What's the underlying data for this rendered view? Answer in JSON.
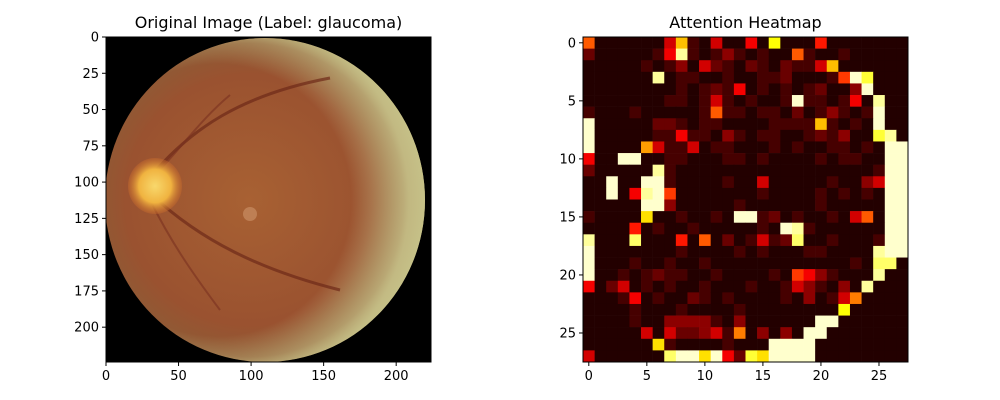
{
  "chart_data": [
    {
      "type": "image",
      "title": "Original Image (Label: glaucoma)",
      "xlim": [
        0,
        224
      ],
      "ylim": [
        224,
        0
      ],
      "xticks": [
        0,
        50,
        100,
        150,
        200
      ],
      "yticks": [
        0,
        25,
        50,
        75,
        100,
        125,
        150,
        175,
        200
      ],
      "image_content": "color retinal fundus photograph",
      "optic_disc_center": [
        37,
        103
      ],
      "optic_disc_radius": 16,
      "colors": {
        "background": "#000000",
        "retina_dark": "#7d3a22",
        "retina_mid": "#a86133",
        "rim": "#c9c58c",
        "optic_disc": "#f6c24c"
      }
    },
    {
      "type": "heatmap",
      "title": "Attention Heatmap",
      "colormap": "hot",
      "shape": [
        28,
        28
      ],
      "xlim": [
        -0.5,
        27.5
      ],
      "ylim": [
        27.5,
        -0.5
      ],
      "xticks": [
        0,
        5,
        10,
        15,
        20,
        25
      ],
      "yticks": [
        0,
        5,
        10,
        15,
        20,
        25
      ],
      "values": [
        [
          0.5,
          0.05,
          0.05,
          0.05,
          0.05,
          0.05,
          0.05,
          0.3,
          0.65,
          0.1,
          0.05,
          0.3,
          0.05,
          0.05,
          0.35,
          0.05,
          0.75,
          0.05,
          0.05,
          0.05,
          0.4,
          0.05,
          0.05,
          0.05,
          0.05,
          0.05,
          0.05,
          0.05
        ],
        [
          0.15,
          0.05,
          0.05,
          0.05,
          0.05,
          0.05,
          0.1,
          0.35,
          0.9,
          0.1,
          0.05,
          0.1,
          0.2,
          0.1,
          0.05,
          0.1,
          0.05,
          0.05,
          0.5,
          0.1,
          0.05,
          0.05,
          0.1,
          0.05,
          0.05,
          0.05,
          0.05,
          0.05
        ],
        [
          0.05,
          0.05,
          0.05,
          0.05,
          0.05,
          0.1,
          0.05,
          0.1,
          0.2,
          0.05,
          0.3,
          0.15,
          0.1,
          0.05,
          0.15,
          0.1,
          0.05,
          0.15,
          0.1,
          0.1,
          0.3,
          0.65,
          0.05,
          0.05,
          0.05,
          0.05,
          0.05,
          0.05
        ],
        [
          0.05,
          0.05,
          0.05,
          0.05,
          0.05,
          0.05,
          0.9,
          0.05,
          0.1,
          0.1,
          0.05,
          0.05,
          0.1,
          0.05,
          0.05,
          0.1,
          0.1,
          0.15,
          0.05,
          0.05,
          0.05,
          0.1,
          0.45,
          0.95,
          0.8,
          0.05,
          0.05,
          0.05
        ],
        [
          0.05,
          0.05,
          0.05,
          0.05,
          0.05,
          0.05,
          0.05,
          0.05,
          0.1,
          0.05,
          0.1,
          0.15,
          0.1,
          0.35,
          0.05,
          0.1,
          0.05,
          0.1,
          0.05,
          0.1,
          0.15,
          0.05,
          0.05,
          0.2,
          0.95,
          0.05,
          0.05,
          0.05
        ],
        [
          0.05,
          0.05,
          0.05,
          0.05,
          0.05,
          0.05,
          0.05,
          0.1,
          0.1,
          0.05,
          0.1,
          0.3,
          0.1,
          0.05,
          0.1,
          0.05,
          0.05,
          0.1,
          0.95,
          0.1,
          0.1,
          0.05,
          0.1,
          0.35,
          0.05,
          0.9,
          0.05,
          0.05
        ],
        [
          0.1,
          0.05,
          0.05,
          0.05,
          0.1,
          0.05,
          0.05,
          0.05,
          0.05,
          0.05,
          0.1,
          0.5,
          0.1,
          0.1,
          0.05,
          0.1,
          0.1,
          0.05,
          0.15,
          0.05,
          0.1,
          0.2,
          0.1,
          0.05,
          0.1,
          0.95,
          0.05,
          0.05
        ],
        [
          0.95,
          0.05,
          0.05,
          0.05,
          0.05,
          0.05,
          0.15,
          0.15,
          0.1,
          0.05,
          0.1,
          0.1,
          0.05,
          0.05,
          0.05,
          0.05,
          0.1,
          0.1,
          0.1,
          0.1,
          0.65,
          0.1,
          0.05,
          0.1,
          0.05,
          0.95,
          0.05,
          0.05
        ],
        [
          0.95,
          0.05,
          0.05,
          0.05,
          0.05,
          0.05,
          0.1,
          0.1,
          0.35,
          0.1,
          0.1,
          0.05,
          0.2,
          0.1,
          0.05,
          0.1,
          0.1,
          0.05,
          0.05,
          0.1,
          0.15,
          0.1,
          0.2,
          0.05,
          0.05,
          0.8,
          0.9,
          0.05
        ],
        [
          0.95,
          0.05,
          0.05,
          0.05,
          0.05,
          0.6,
          0.3,
          0.1,
          0.1,
          0.3,
          0.05,
          0.1,
          0.1,
          0.05,
          0.05,
          0.05,
          0.1,
          0.05,
          0.1,
          0.05,
          0.05,
          0.1,
          0.1,
          0.05,
          0.1,
          0.05,
          0.95,
          0.95
        ],
        [
          0.35,
          0.05,
          0.05,
          0.95,
          0.95,
          0.05,
          0.05,
          0.1,
          0.1,
          0.05,
          0.05,
          0.05,
          0.1,
          0.1,
          0.05,
          0.1,
          0.05,
          0.05,
          0.05,
          0.05,
          0.1,
          0.05,
          0.1,
          0.1,
          0.05,
          0.05,
          0.95,
          0.95
        ],
        [
          0.15,
          0.05,
          0.05,
          0.05,
          0.05,
          0.05,
          0.9,
          0.1,
          0.05,
          0.05,
          0.05,
          0.05,
          0.05,
          0.05,
          0.05,
          0.05,
          0.05,
          0.05,
          0.05,
          0.05,
          0.05,
          0.05,
          0.05,
          0.05,
          0.05,
          0.1,
          0.95,
          0.95
        ],
        [
          0.05,
          0.05,
          0.95,
          0.05,
          0.05,
          0.95,
          0.95,
          0.1,
          0.05,
          0.05,
          0.05,
          0.05,
          0.1,
          0.05,
          0.05,
          0.3,
          0.05,
          0.05,
          0.05,
          0.05,
          0.05,
          0.1,
          0.05,
          0.05,
          0.2,
          0.3,
          0.95,
          0.95
        ],
        [
          0.05,
          0.05,
          0.95,
          0.05,
          0.35,
          0.9,
          0.95,
          0.45,
          0.05,
          0.05,
          0.05,
          0.05,
          0.05,
          0.05,
          0.05,
          0.1,
          0.05,
          0.05,
          0.05,
          0.05,
          0.1,
          0.05,
          0.1,
          0.05,
          0.1,
          0.05,
          0.95,
          0.95
        ],
        [
          0.05,
          0.05,
          0.05,
          0.05,
          0.05,
          0.95,
          0.95,
          0.2,
          0.05,
          0.05,
          0.05,
          0.05,
          0.05,
          0.1,
          0.05,
          0.05,
          0.05,
          0.05,
          0.05,
          0.05,
          0.1,
          0.05,
          0.05,
          0.05,
          0.05,
          0.05,
          0.95,
          0.95
        ],
        [
          0.1,
          0.05,
          0.05,
          0.05,
          0.05,
          0.7,
          0.05,
          0.05,
          0.1,
          0.05,
          0.05,
          0.1,
          0.05,
          0.95,
          0.95,
          0.1,
          0.15,
          0.05,
          0.1,
          0.05,
          0.05,
          0.1,
          0.05,
          0.3,
          0.5,
          0.05,
          0.95,
          0.95
        ],
        [
          0.05,
          0.05,
          0.05,
          0.05,
          0.4,
          0.05,
          0.1,
          0.05,
          0.05,
          0.1,
          0.05,
          0.05,
          0.05,
          0.05,
          0.05,
          0.1,
          0.05,
          0.95,
          0.9,
          0.1,
          0.05,
          0.05,
          0.05,
          0.05,
          0.05,
          0.05,
          0.95,
          0.95
        ],
        [
          0.9,
          0.05,
          0.05,
          0.05,
          0.85,
          0.05,
          0.05,
          0.05,
          0.4,
          0.05,
          0.5,
          0.05,
          0.15,
          0.05,
          0.1,
          0.3,
          0.1,
          0.15,
          0.85,
          0.05,
          0.05,
          0.1,
          0.05,
          0.05,
          0.05,
          0.1,
          0.95,
          0.95
        ],
        [
          0.95,
          0.05,
          0.05,
          0.05,
          0.05,
          0.05,
          0.05,
          0.05,
          0.1,
          0.05,
          0.05,
          0.05,
          0.05,
          0.1,
          0.05,
          0.1,
          0.05,
          0.05,
          0.05,
          0.1,
          0.1,
          0.05,
          0.05,
          0.05,
          0.05,
          0.9,
          0.95,
          0.95
        ],
        [
          0.95,
          0.05,
          0.05,
          0.05,
          0.1,
          0.05,
          0.05,
          0.1,
          0.05,
          0.05,
          0.1,
          0.05,
          0.05,
          0.05,
          0.05,
          0.05,
          0.05,
          0.05,
          0.05,
          0.05,
          0.05,
          0.05,
          0.05,
          0.1,
          0.05,
          0.85,
          0.85,
          0.05
        ],
        [
          0.95,
          0.05,
          0.05,
          0.1,
          0.05,
          0.1,
          0.15,
          0.1,
          0.1,
          0.05,
          0.05,
          0.1,
          0.05,
          0.05,
          0.05,
          0.05,
          0.1,
          0.05,
          0.45,
          0.35,
          0.2,
          0.1,
          0.05,
          0.05,
          0.05,
          0.9,
          0.05,
          0.05
        ],
        [
          0.35,
          0.05,
          0.15,
          0.3,
          0.05,
          0.1,
          0.05,
          0.1,
          0.05,
          0.05,
          0.1,
          0.05,
          0.05,
          0.05,
          0.1,
          0.05,
          0.05,
          0.1,
          0.3,
          0.2,
          0.1,
          0.05,
          0.2,
          0.05,
          0.9,
          0.05,
          0.05,
          0.05
        ],
        [
          0.05,
          0.05,
          0.05,
          0.1,
          0.35,
          0.05,
          0.1,
          0.05,
          0.05,
          0.15,
          0.1,
          0.05,
          0.1,
          0.05,
          0.05,
          0.05,
          0.05,
          0.1,
          0.05,
          0.2,
          0.05,
          0.1,
          0.3,
          0.55,
          0.05,
          0.05,
          0.05,
          0.05
        ],
        [
          0.05,
          0.05,
          0.05,
          0.05,
          0.1,
          0.05,
          0.05,
          0.05,
          0.1,
          0.05,
          0.05,
          0.05,
          0.05,
          0.1,
          0.05,
          0.05,
          0.05,
          0.05,
          0.05,
          0.05,
          0.05,
          0.05,
          0.75,
          0.05,
          0.05,
          0.05,
          0.05,
          0.05
        ],
        [
          0.05,
          0.05,
          0.05,
          0.05,
          0.1,
          0.05,
          0.05,
          0.2,
          0.2,
          0.2,
          0.2,
          0.1,
          0.05,
          0.2,
          0.05,
          0.05,
          0.05,
          0.05,
          0.05,
          0.05,
          0.95,
          0.95,
          0.05,
          0.05,
          0.05,
          0.05,
          0.05,
          0.05
        ],
        [
          0.05,
          0.05,
          0.05,
          0.05,
          0.05,
          0.3,
          0.05,
          0.3,
          0.15,
          0.15,
          0.2,
          0.3,
          0.1,
          0.55,
          0.05,
          0.2,
          0.05,
          0.2,
          0.05,
          0.95,
          0.95,
          0.05,
          0.05,
          0.05,
          0.05,
          0.05,
          0.05,
          0.05
        ],
        [
          0.05,
          0.05,
          0.05,
          0.05,
          0.05,
          0.05,
          0.7,
          0.1,
          0.05,
          0.05,
          0.05,
          0.05,
          0.1,
          0.05,
          0.05,
          0.05,
          0.95,
          0.95,
          0.95,
          0.95,
          0.05,
          0.05,
          0.05,
          0.05,
          0.05,
          0.05,
          0.05,
          0.05
        ],
        [
          0.3,
          0.05,
          0.05,
          0.05,
          0.05,
          0.05,
          0.05,
          0.85,
          0.95,
          0.95,
          0.7,
          0.95,
          0.35,
          0.15,
          0.8,
          0.7,
          0.95,
          0.95,
          0.95,
          0.95,
          0.05,
          0.05,
          0.05,
          0.05,
          0.05,
          0.05,
          0.05,
          0.05
        ]
      ]
    }
  ]
}
